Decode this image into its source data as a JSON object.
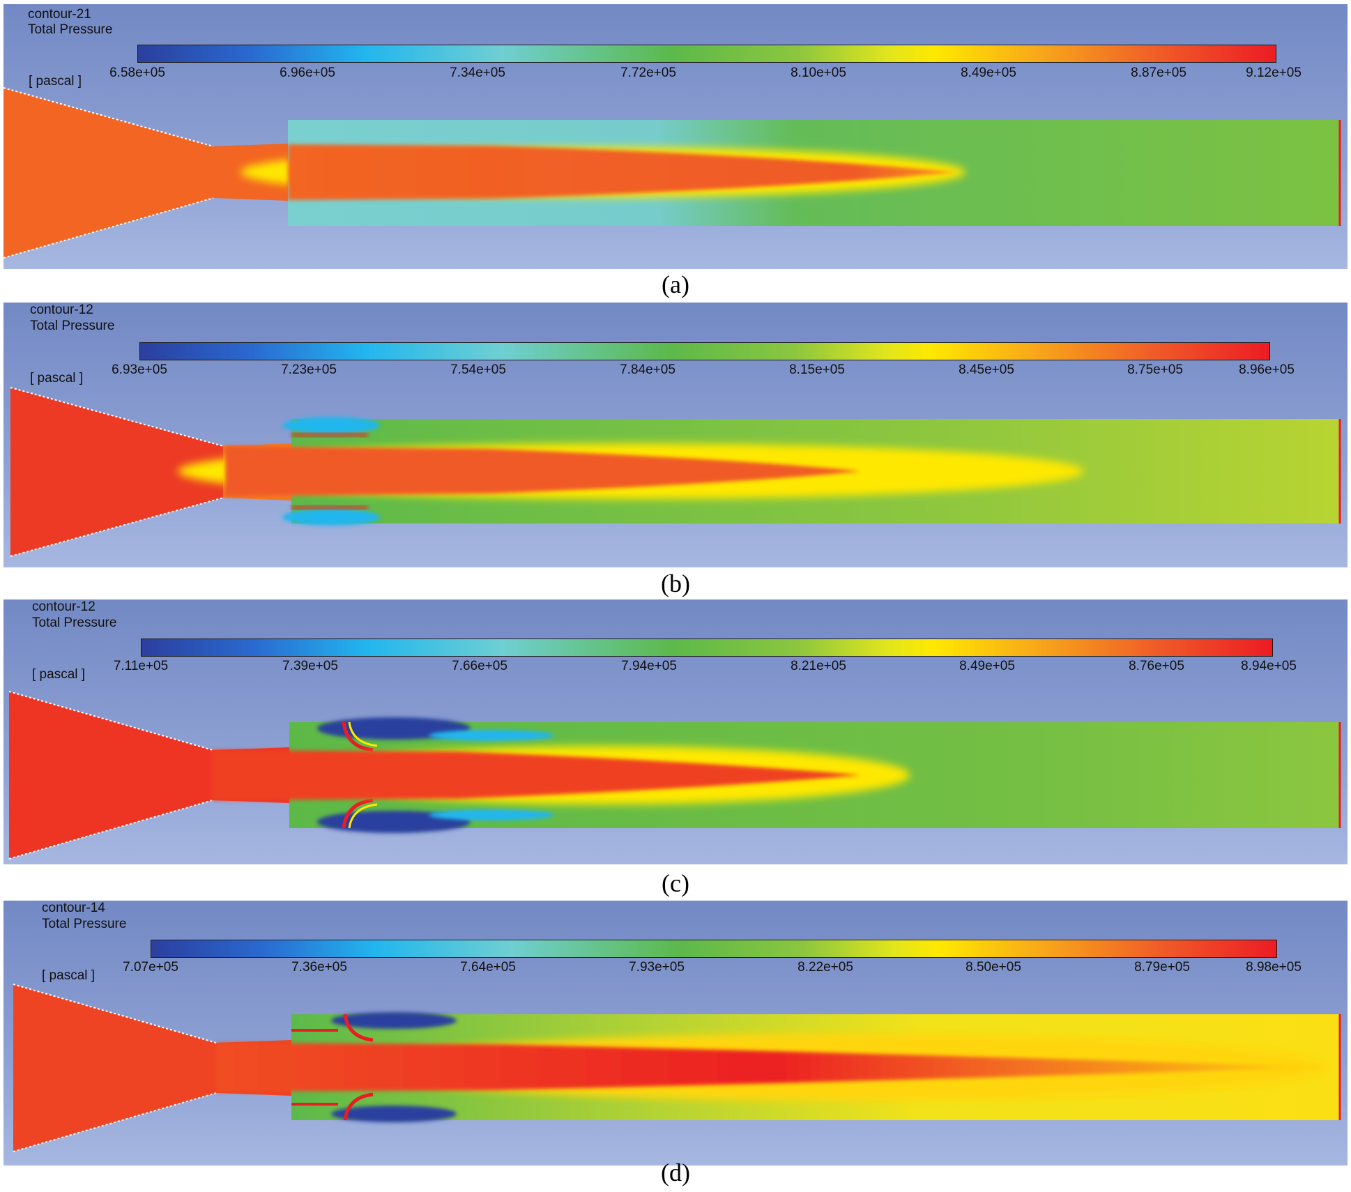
{
  "figure": {
    "panels": [
      {
        "id": "a",
        "contour_name": "contour-21",
        "variable": "Total Pressure",
        "unit_label": "[ pascal ]",
        "colorbar_ticks": [
          "6.58e+05",
          "6.96e+05",
          "7.34e+05",
          "7.72e+05",
          "8.10e+05",
          "8.49e+05",
          "8.87e+05",
          "9.12e+05"
        ],
        "caption": "(a)"
      },
      {
        "id": "b",
        "contour_name": "contour-12",
        "variable": "Total Pressure",
        "unit_label": "[ pascal ]",
        "colorbar_ticks": [
          "6.93e+05",
          "7.23e+05",
          "7.54e+05",
          "7.84e+05",
          "8.15e+05",
          "8.45e+05",
          "8.75e+05",
          "8.96e+05"
        ],
        "caption": "(b)"
      },
      {
        "id": "c",
        "contour_name": "contour-12",
        "variable": "Total Pressure",
        "unit_label": "[ pascal ]",
        "colorbar_ticks": [
          "7.11e+05",
          "7.39e+05",
          "7.66e+05",
          "7.94e+05",
          "8.21e+05",
          "8.49e+05",
          "8.76e+05",
          "8.94e+05"
        ],
        "caption": "(c)"
      },
      {
        "id": "d",
        "contour_name": "contour-14",
        "variable": "Total Pressure",
        "unit_label": "[ pascal ]",
        "colorbar_ticks": [
          "7.07e+05",
          "7.36e+05",
          "7.64e+05",
          "7.93e+05",
          "8.22e+05",
          "8.50e+05",
          "8.79e+05",
          "8.98e+05"
        ],
        "caption": "(d)"
      }
    ]
  }
}
